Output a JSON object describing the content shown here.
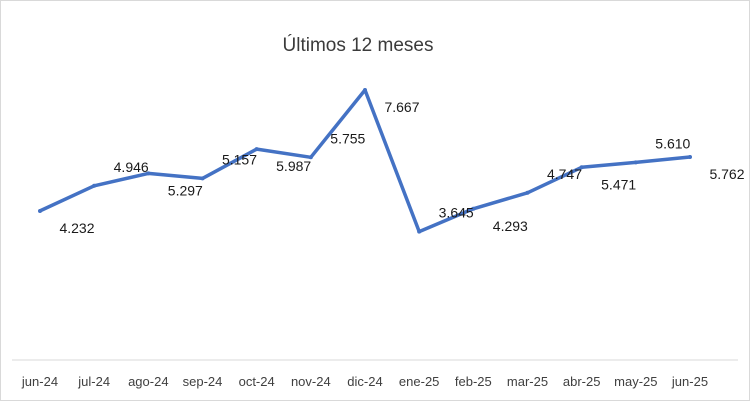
{
  "chart_data": {
    "type": "line",
    "title": "Últimos 12 meses",
    "categories": [
      "jun-24",
      "jul-24",
      "ago-24",
      "sep-24",
      "oct-24",
      "nov-24",
      "dic-24",
      "ene-25",
      "feb-25",
      "mar-25",
      "abr-25",
      "may-25",
      "jun-25"
    ],
    "series": [
      {
        "values": [
          4232,
          4946,
          5297,
          5157,
          5987,
          5755,
          7667,
          3645,
          4293,
          4747,
          5471,
          5610,
          5762
        ],
        "labels": [
          "4.232",
          "4.946",
          "5.297",
          "5.157",
          "5.987",
          "5.755",
          "7.667",
          "3.645",
          "4.293",
          "4.747",
          "5.471",
          "5.610",
          "5.762"
        ],
        "color": "#4472c4"
      }
    ],
    "ylim": [
      0,
      9000
    ],
    "grid": false,
    "legend": "none",
    "xlabel": "",
    "ylabel": ""
  }
}
